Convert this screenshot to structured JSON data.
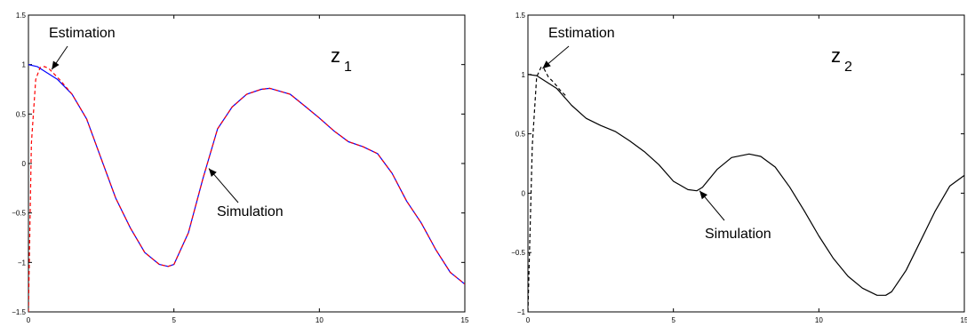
{
  "chart_data": [
    {
      "type": "line",
      "panel_label": "z",
      "panel_label_sub": "1",
      "xlim": [
        0,
        15
      ],
      "ylim": [
        -1.5,
        1.5
      ],
      "xticks": [
        0,
        5,
        10,
        15
      ],
      "yticks": [
        -1.5,
        -1,
        -0.5,
        0,
        0.5,
        1,
        1.5
      ],
      "xtick_labels": [
        "0",
        "5",
        "10",
        "15"
      ],
      "ytick_labels": [
        "−1.5",
        "−1",
        "−0.5",
        "0",
        "0.5",
        "1",
        "1.5"
      ],
      "annotations": [
        {
          "text": "Estimation",
          "target": [
            0.8,
            0.95
          ]
        },
        {
          "text": "Simulation",
          "target": [
            6.2,
            -0.05
          ]
        }
      ],
      "series": [
        {
          "color": "#0000ff",
          "dash": "solid",
          "x": [
            0,
            0.3,
            1,
            1.5,
            2,
            2.5,
            3,
            3.5,
            4,
            4.5,
            4.8,
            5,
            5.5,
            6,
            6.5,
            7,
            7.5,
            8,
            8.3,
            9,
            9.5,
            10,
            10.5,
            11,
            11.5,
            12,
            12.5,
            13,
            13.5,
            14,
            14.5,
            15
          ],
          "y": [
            1.0,
            0.98,
            0.85,
            0.7,
            0.45,
            0.05,
            -0.35,
            -0.65,
            -0.9,
            -1.02,
            -1.04,
            -1.02,
            -0.7,
            -0.15,
            0.35,
            0.57,
            0.7,
            0.75,
            0.76,
            0.7,
            0.58,
            0.46,
            0.33,
            0.22,
            0.17,
            0.1,
            -0.1,
            -0.38,
            -0.6,
            -0.87,
            -1.1,
            -1.22
          ]
        },
        {
          "color": "#ff0000",
          "dash": "dashed",
          "x": [
            0,
            0.1,
            0.25,
            0.4,
            0.55,
            0.7,
            0.9,
            1.1,
            1.5,
            2,
            2.5,
            3,
            3.5,
            4,
            4.5,
            4.8,
            5,
            5.5,
            6,
            6.5,
            7,
            7.5,
            8,
            8.3,
            9,
            9.5,
            10,
            10.5,
            11,
            11.5,
            12,
            12.5,
            13,
            13.5,
            14,
            14.5,
            15
          ],
          "y": [
            -1.5,
            0.2,
            0.85,
            0.97,
            0.98,
            0.96,
            0.9,
            0.84,
            0.7,
            0.45,
            0.05,
            -0.35,
            -0.65,
            -0.9,
            -1.02,
            -1.04,
            -1.02,
            -0.7,
            -0.15,
            0.35,
            0.57,
            0.7,
            0.75,
            0.76,
            0.7,
            0.58,
            0.46,
            0.33,
            0.22,
            0.17,
            0.1,
            -0.1,
            -0.38,
            -0.6,
            -0.87,
            -1.1,
            -1.22
          ]
        }
      ]
    },
    {
      "type": "line",
      "panel_label": "z",
      "panel_label_sub": "2",
      "xlim": [
        0,
        15
      ],
      "ylim": [
        -1,
        1.5
      ],
      "xticks": [
        0,
        5,
        10,
        15
      ],
      "yticks": [
        -1,
        -0.5,
        0,
        0.5,
        1,
        1.5
      ],
      "xtick_labels": [
        "0",
        "5",
        "10",
        "15"
      ],
      "ytick_labels": [
        "−1",
        "−0.5",
        "0",
        "0.5",
        "1",
        "1.5"
      ],
      "annotations": [
        {
          "text": "Estimation",
          "target": [
            0.5,
            1.05
          ]
        },
        {
          "text": "Simulation",
          "target": [
            5.9,
            0.02
          ]
        }
      ],
      "series": [
        {
          "color": "#000000",
          "dash": "solid",
          "x": [
            0,
            0.3,
            1,
            1.5,
            2,
            2.5,
            3,
            3.5,
            4,
            4.5,
            5,
            5.5,
            5.8,
            6,
            6.5,
            7,
            7.6,
            8,
            8.5,
            9,
            9.5,
            10,
            10.5,
            11,
            11.5,
            12,
            12.3,
            12.5,
            13,
            13.5,
            14,
            14.5,
            15
          ],
          "y": [
            1.0,
            0.99,
            0.88,
            0.74,
            0.63,
            0.57,
            0.52,
            0.44,
            0.35,
            0.24,
            0.1,
            0.03,
            0.02,
            0.05,
            0.2,
            0.3,
            0.33,
            0.31,
            0.22,
            0.05,
            -0.15,
            -0.36,
            -0.55,
            -0.7,
            -0.8,
            -0.86,
            -0.86,
            -0.83,
            -0.65,
            -0.4,
            -0.15,
            0.06,
            0.15
          ]
        },
        {
          "color": "#000000",
          "dash": "dashed",
          "x": [
            0,
            0.15,
            0.3,
            0.45,
            0.55,
            0.7,
            0.9,
            1.1,
            1.3
          ],
          "y": [
            -1.0,
            0.4,
            0.98,
            1.06,
            1.05,
            0.98,
            0.93,
            0.87,
            0.82
          ]
        }
      ]
    }
  ]
}
